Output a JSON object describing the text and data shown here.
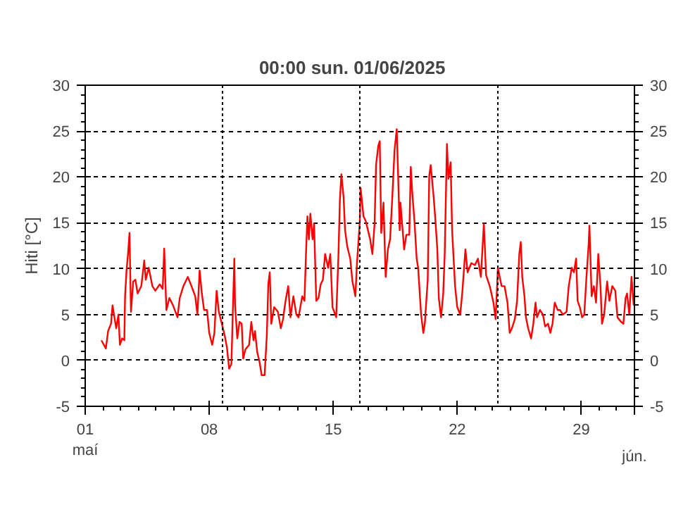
{
  "chart_data": {
    "type": "line",
    "title": "00:00   sun.  01/06/2025",
    "ylabel": "Hiti [°C]",
    "xlim": [
      "2025-05-01",
      "2025-06-01"
    ],
    "xticks": [
      {
        "value": "2025-05-01",
        "label": "01\nmaí"
      },
      {
        "value": "2025-05-08",
        "label": "08"
      },
      {
        "value": "2025-05-15",
        "label": "15"
      },
      {
        "value": "2025-05-22",
        "label": "22"
      },
      {
        "value": "2025-05-29",
        "label": "29"
      },
      {
        "value": "2025-06-01",
        "label": null
      }
    ],
    "annotations": [
      "jún."
    ],
    "ylim": [
      -5,
      30
    ],
    "yticks": [
      -5,
      0,
      5,
      10,
      15,
      20,
      25,
      30
    ],
    "y2lim": [
      -5,
      30
    ],
    "y2ticks": [
      -5,
      0,
      5,
      10,
      15,
      20,
      25,
      30
    ],
    "grid": "y",
    "ref_lines": [
      {
        "axis": "x",
        "value": "2025-05-08T18:00",
        "color": "#000000",
        "line_style": "dotted"
      },
      {
        "axis": "x",
        "value": "2025-05-16T12:00",
        "color": "#000000",
        "line_style": "dotted"
      },
      {
        "axis": "x",
        "value": "2025-05-24T07:00",
        "color": "#000000",
        "line_style": "dotted"
      }
    ],
    "series": [
      {
        "color": "#ff0000",
        "x": [
          "2025-05-01T22:00",
          "2025-05-02T04:00",
          "2025-05-02T07:00",
          "2025-05-02T11:00",
          "2025-05-02T13:00",
          "2025-05-02T16:00",
          "2025-05-02T18:00",
          "2025-05-02T21:00",
          "2025-05-02T23:00",
          "2025-05-03T02:00",
          "2025-05-03T05:00",
          "2025-05-03T06:00",
          "2025-05-03T08:00",
          "2025-05-03T10:00",
          "2025-05-03T12:00",
          "2025-05-03T14:00",
          "2025-05-03T17:00",
          "2025-05-03T20:00",
          "2025-05-03T23:00",
          "2025-05-04T04:00",
          "2025-05-04T08:00",
          "2025-05-04T10:00",
          "2025-05-04T14:00",
          "2025-05-04T19:00",
          "2025-05-04T23:00",
          "2025-05-05T05:00",
          "2025-05-05T09:00",
          "2025-05-05T11:00",
          "2025-05-05T14:00",
          "2025-05-05T18:00",
          "2025-05-05T23:00",
          "2025-05-06T05:00",
          "2025-05-06T08:00",
          "2025-05-06T13:00",
          "2025-05-06T19:00",
          "2025-05-07T00:00",
          "2025-05-07T05:00",
          "2025-05-07T08:00",
          "2025-05-07T11:00",
          "2025-05-07T14:00",
          "2025-05-07T17:00",
          "2025-05-07T21:00",
          "2025-05-08T00:00",
          "2025-05-08T04:00",
          "2025-05-08T07:00",
          "2025-05-08T10:00",
          "2025-05-08T13:00",
          "2025-05-08T18:00",
          "2025-05-08T21:00",
          "2025-05-09T00:00",
          "2025-05-09T03:00",
          "2025-05-09T06:00",
          "2025-05-09T10:00",
          "2025-05-09T11:00",
          "2025-05-09T14:00",
          "2025-05-09T17:00",
          "2025-05-09T20:00",
          "2025-05-09T22:00",
          "2025-05-10T01:00",
          "2025-05-10T06:00",
          "2025-05-10T09:00",
          "2025-05-10T12:00",
          "2025-05-10T14:00",
          "2025-05-10T17:00",
          "2025-05-10T20:00",
          "2025-05-10T23:00",
          "2025-05-11T03:00",
          "2025-05-11T06:00",
          "2025-05-11T08:00",
          "2025-05-11T10:00",
          "2025-05-11T12:00",
          "2025-05-11T16:00",
          "2025-05-11T21:00",
          "2025-05-12T01:00",
          "2025-05-12T04:00",
          "2025-05-12T07:00",
          "2025-05-12T11:00",
          "2025-05-12T14:00",
          "2025-05-12T18:00",
          "2025-05-12T22:00",
          "2025-05-13T01:00",
          "2025-05-13T06:00",
          "2025-05-13T09:00",
          "2025-05-13T11:00",
          "2025-05-13T13:00",
          "2025-05-13T15:00",
          "2025-05-13T17:00",
          "2025-05-13T20:00",
          "2025-05-13T22:00",
          "2025-05-14T01:00",
          "2025-05-14T04:00",
          "2025-05-14T07:00",
          "2025-05-14T10:00",
          "2025-05-14T13:00",
          "2025-05-14T17:00",
          "2025-05-14T20:00",
          "2025-05-14T23:00",
          "2025-05-15T04:00",
          "2025-05-15T07:00",
          "2025-05-15T09:00",
          "2025-05-15T11:00",
          "2025-05-15T14:00",
          "2025-05-15T16:00",
          "2025-05-15T19:00",
          "2025-05-15T23:00",
          "2025-05-16T02:00",
          "2025-05-16T06:00",
          "2025-05-16T08:00",
          "2025-05-16T12:00",
          "2025-05-16T13:00",
          "2025-05-16T17:00",
          "2025-05-16T20:00",
          "2025-05-16T23:00",
          "2025-05-17T02:00",
          "2025-05-17T05:00",
          "2025-05-17T08:00",
          "2025-05-17T10:00",
          "2025-05-17T13:00",
          "2025-05-17T15:00",
          "2025-05-17T17:00",
          "2025-05-17T20:00",
          "2025-05-17T23:00",
          "2025-05-18T02:00",
          "2025-05-18T05:00",
          "2025-05-18T08:00",
          "2025-05-18T11:00",
          "2025-05-18T14:00",
          "2025-05-18T16:00",
          "2025-05-18T18:00",
          "2025-05-18T19:00",
          "2025-05-18T22:00",
          "2025-05-19T00:00",
          "2025-05-19T03:00",
          "2025-05-19T07:00",
          "2025-05-19T09:00",
          "2025-05-19T11:00",
          "2025-05-19T14:00",
          "2025-05-19T17:00",
          "2025-05-19T19:00",
          "2025-05-19T23:00",
          "2025-05-20T02:00",
          "2025-05-20T04:00",
          "2025-05-20T08:00",
          "2025-05-20T10:00",
          "2025-05-20T12:00",
          "2025-05-20T16:00",
          "2025-05-20T18:00",
          "2025-05-20T21:00",
          "2025-05-20T23:00",
          "2025-05-21T02:00",
          "2025-05-21T05:00",
          "2025-05-21T07:00",
          "2025-05-21T10:00",
          "2025-05-21T12:00",
          "2025-05-21T15:00",
          "2025-05-21T17:00",
          "2025-05-21T21:00",
          "2025-05-22T00:00",
          "2025-05-22T04:00",
          "2025-05-22T07:00",
          "2025-05-22T11:00",
          "2025-05-22T14:00",
          "2025-05-22T19:00",
          "2025-05-23T00:00",
          "2025-05-23T04:00",
          "2025-05-23T08:00",
          "2025-05-23T12:00",
          "2025-05-23T15:00",
          "2025-05-23T20:00",
          "2025-05-24T01:00",
          "2025-05-24T04:00",
          "2025-05-24T07:00",
          "2025-05-24T12:00",
          "2025-05-24T16:00",
          "2025-05-24T20:00",
          "2025-05-24T23:00",
          "2025-05-25T02:00",
          "2025-05-25T06:00",
          "2025-05-25T09:00",
          "2025-05-25T12:00",
          "2025-05-25T14:00",
          "2025-05-25T16:00",
          "2025-05-25T19:00",
          "2025-05-25T21:00",
          "2025-05-26T00:00",
          "2025-05-26T04:00",
          "2025-05-26T07:00",
          "2025-05-26T10:00",
          "2025-05-26T12:00",
          "2025-05-26T16:00",
          "2025-05-26T20:00",
          "2025-05-26T23:00",
          "2025-05-27T03:00",
          "2025-05-27T06:00",
          "2025-05-27T09:00",
          "2025-05-27T12:00",
          "2025-05-27T16:00",
          "2025-05-27T19:00",
          "2025-05-27T23:00",
          "2025-05-28T04:00",
          "2025-05-28T07:00",
          "2025-05-28T11:00",
          "2025-05-28T14:00",
          "2025-05-28T17:00",
          "2025-05-28T19:00",
          "2025-05-28T22:00",
          "2025-05-29T01:00",
          "2025-05-29T04:00",
          "2025-05-29T07:00",
          "2025-05-29T10:00",
          "2025-05-29T11:00",
          "2025-05-29T14:00",
          "2025-05-29T17:00",
          "2025-05-29T20:00",
          "2025-05-29T23:00",
          "2025-05-30T02:00",
          "2025-05-30T04:00",
          "2025-05-30T07:00",
          "2025-05-30T11:00",
          "2025-05-30T14:00",
          "2025-05-30T18:00",
          "2025-05-30T22:00",
          "2025-05-31T01:00",
          "2025-05-31T06:00",
          "2025-05-31T09:00",
          "2025-05-31T12:00",
          "2025-05-31T14:00",
          "2025-05-31T17:00",
          "2025-05-31T20:00",
          "2025-05-31T23:00"
        ],
        "values": [
          2.2,
          1.3,
          3.2,
          4.0,
          6.0,
          4.5,
          3.5,
          5.0,
          1.7,
          2.4,
          2.2,
          7.0,
          9.8,
          11.6,
          13.9,
          5.3,
          8.6,
          8.8,
          7.3,
          8.1,
          10.9,
          8.8,
          10.1,
          8.1,
          7.6,
          8.3,
          7.8,
          12.2,
          5.5,
          6.8,
          6.0,
          4.7,
          6.8,
          8.1,
          9.1,
          8.1,
          7.0,
          5.0,
          9.8,
          7.3,
          5.5,
          5.5,
          3.0,
          1.7,
          3.0,
          7.6,
          5.3,
          3.7,
          2.7,
          1.4,
          -0.9,
          -0.4,
          11.1,
          6.0,
          2.4,
          4.2,
          4.0,
          0.2,
          1.2,
          1.7,
          4.2,
          2.2,
          3.2,
          0.9,
          -0.1,
          -1.6,
          -1.6,
          2.7,
          8.3,
          9.6,
          4.0,
          5.8,
          5.3,
          3.5,
          4.5,
          6.3,
          8.1,
          4.7,
          7.0,
          5.0,
          4.7,
          7.0,
          6.5,
          11.4,
          15.7,
          13.2,
          16.0,
          13.2,
          14.9,
          6.5,
          6.8,
          8.3,
          8.8,
          11.6,
          10.1,
          11.6,
          5.8,
          4.7,
          11.4,
          17.5,
          20.3,
          17.8,
          14.2,
          12.4,
          11.1,
          8.6,
          7.0,
          10.4,
          15.2,
          18.8,
          15.7,
          15.2,
          14.2,
          13.2,
          11.6,
          14.9,
          21.3,
          23.4,
          23.9,
          13.9,
          17.2,
          9.1,
          12.1,
          13.2,
          17.8,
          22.9,
          25.2,
          19.8,
          14.2,
          17.2,
          14.2,
          12.1,
          13.7,
          13.7,
          21.1,
          18.3,
          15.2,
          11.1,
          10.1,
          5.0,
          3.0,
          4.0,
          8.8,
          20.1,
          21.3,
          17.8,
          15.7,
          12.1,
          6.8,
          4.7,
          7.3,
          11.6,
          23.6,
          19.8,
          21.6,
          14.2,
          8.1,
          5.8,
          5.0,
          7.6,
          12.1,
          9.6,
          10.6,
          10.4,
          11.1,
          9.1,
          14.9,
          9.3,
          8.1,
          6.3,
          4.5,
          10.1,
          8.1,
          8.1,
          6.3,
          3.0,
          3.5,
          4.5,
          6.5,
          11.6,
          12.9,
          9.1,
          7.0,
          4.7,
          3.5,
          2.4,
          4.0,
          6.3,
          4.7,
          5.5,
          5.0,
          3.7,
          4.0,
          3.0,
          4.0,
          6.3,
          5.5,
          5.5,
          5.0,
          5.3,
          8.1,
          10.1,
          9.6,
          11.1,
          6.5,
          5.8,
          4.7,
          5.0,
          9.1,
          12.7,
          14.7,
          7.0,
          8.1,
          6.3,
          11.6,
          8.1,
          4.0,
          5.0,
          8.6,
          6.5,
          8.1,
          7.6,
          4.7,
          4.2,
          4.0,
          6.8,
          7.3,
          5.0,
          9.1,
          6.0
        ]
      }
    ]
  }
}
